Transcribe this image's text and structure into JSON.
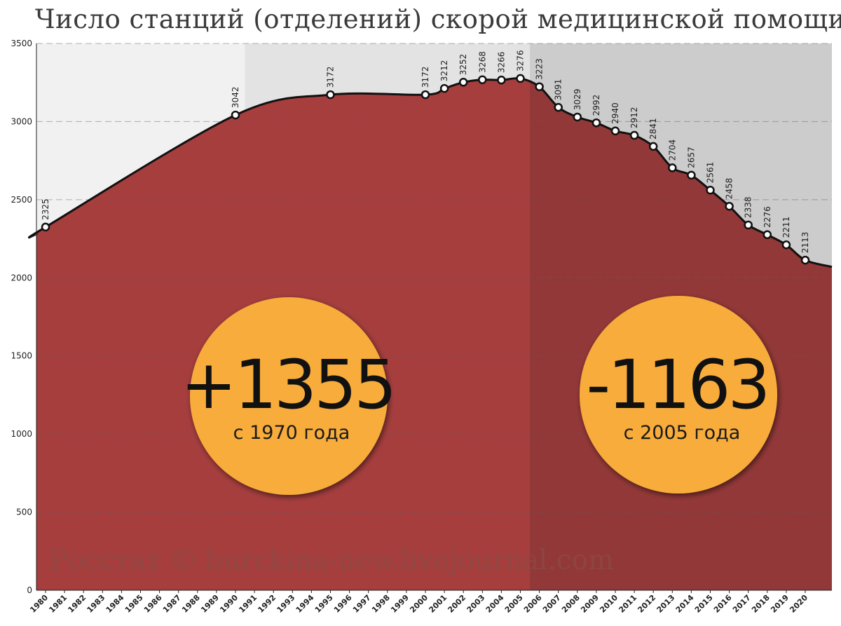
{
  "title": "Число станций (отделений) скорой медицинской помощи",
  "credit": "Росстат © burckina-new.livejournal.com",
  "y_ticks": [
    "0",
    "500",
    "1000",
    "1500",
    "2000",
    "2500",
    "3000",
    "3500"
  ],
  "x_ticks": [
    "1980",
    "1981",
    "1982",
    "1983",
    "1984",
    "1985",
    "1986",
    "1987",
    "1988",
    "1989",
    "1990",
    "1991",
    "1992",
    "1993",
    "1994",
    "1995",
    "1996",
    "1997",
    "1998",
    "1999",
    "2000",
    "2001",
    "2002",
    "2003",
    "2004",
    "2005",
    "2006",
    "2007",
    "2008",
    "2009",
    "2010",
    "2011",
    "2012",
    "2013",
    "2014",
    "2015",
    "2016",
    "2017",
    "2018",
    "2019",
    "2020"
  ],
  "annotations": [
    {
      "value": "+1355",
      "caption": "с 1970 года"
    },
    {
      "value": "-1163",
      "caption": "с 2005 года"
    }
  ],
  "colors": {
    "area": "#a63e3e",
    "area_dark": "#933838",
    "bg_left": "#f1f1f1",
    "bg_mid": "#e3e3e3",
    "bg_right": "#cccccc",
    "circle": "#f7ac3b",
    "line": "#111111"
  },
  "chart_data": {
    "type": "area",
    "ylim": [
      0,
      3500
    ],
    "xlim": [
      1980,
      2020
    ],
    "series": [
      {
        "x": [
          1980,
          1990,
          1995,
          2000,
          2001,
          2002,
          2003,
          2004,
          2005,
          2006,
          2007,
          2008,
          2009,
          2010,
          2011,
          2012,
          2013,
          2014,
          2015,
          2016,
          2017,
          2018,
          2019,
          2020
        ],
        "values": [
          2325,
          3042,
          3172,
          3172,
          3212,
          3252,
          3268,
          3266,
          3276,
          3223,
          3091,
          3029,
          2992,
          2940,
          2912,
          2841,
          2704,
          2657,
          2561,
          2458,
          2338,
          2276,
          2211,
          2113
        ],
        "labels": [
          "2325",
          "3042",
          "3172",
          "3172",
          "3212",
          "3252",
          "3268",
          "3266",
          "3276",
          "3223",
          "3091",
          "3029",
          "2992",
          "2940",
          "2912",
          "2841",
          "2704",
          "2657",
          "2561",
          "2458",
          "2338",
          "2276",
          "2211",
          "2113"
        ]
      }
    ],
    "shaded_periods": [
      [
        1980,
        1990.5
      ],
      [
        1990.5,
        2005.5
      ],
      [
        2005.5,
        2020
      ]
    ],
    "grid": true
  }
}
